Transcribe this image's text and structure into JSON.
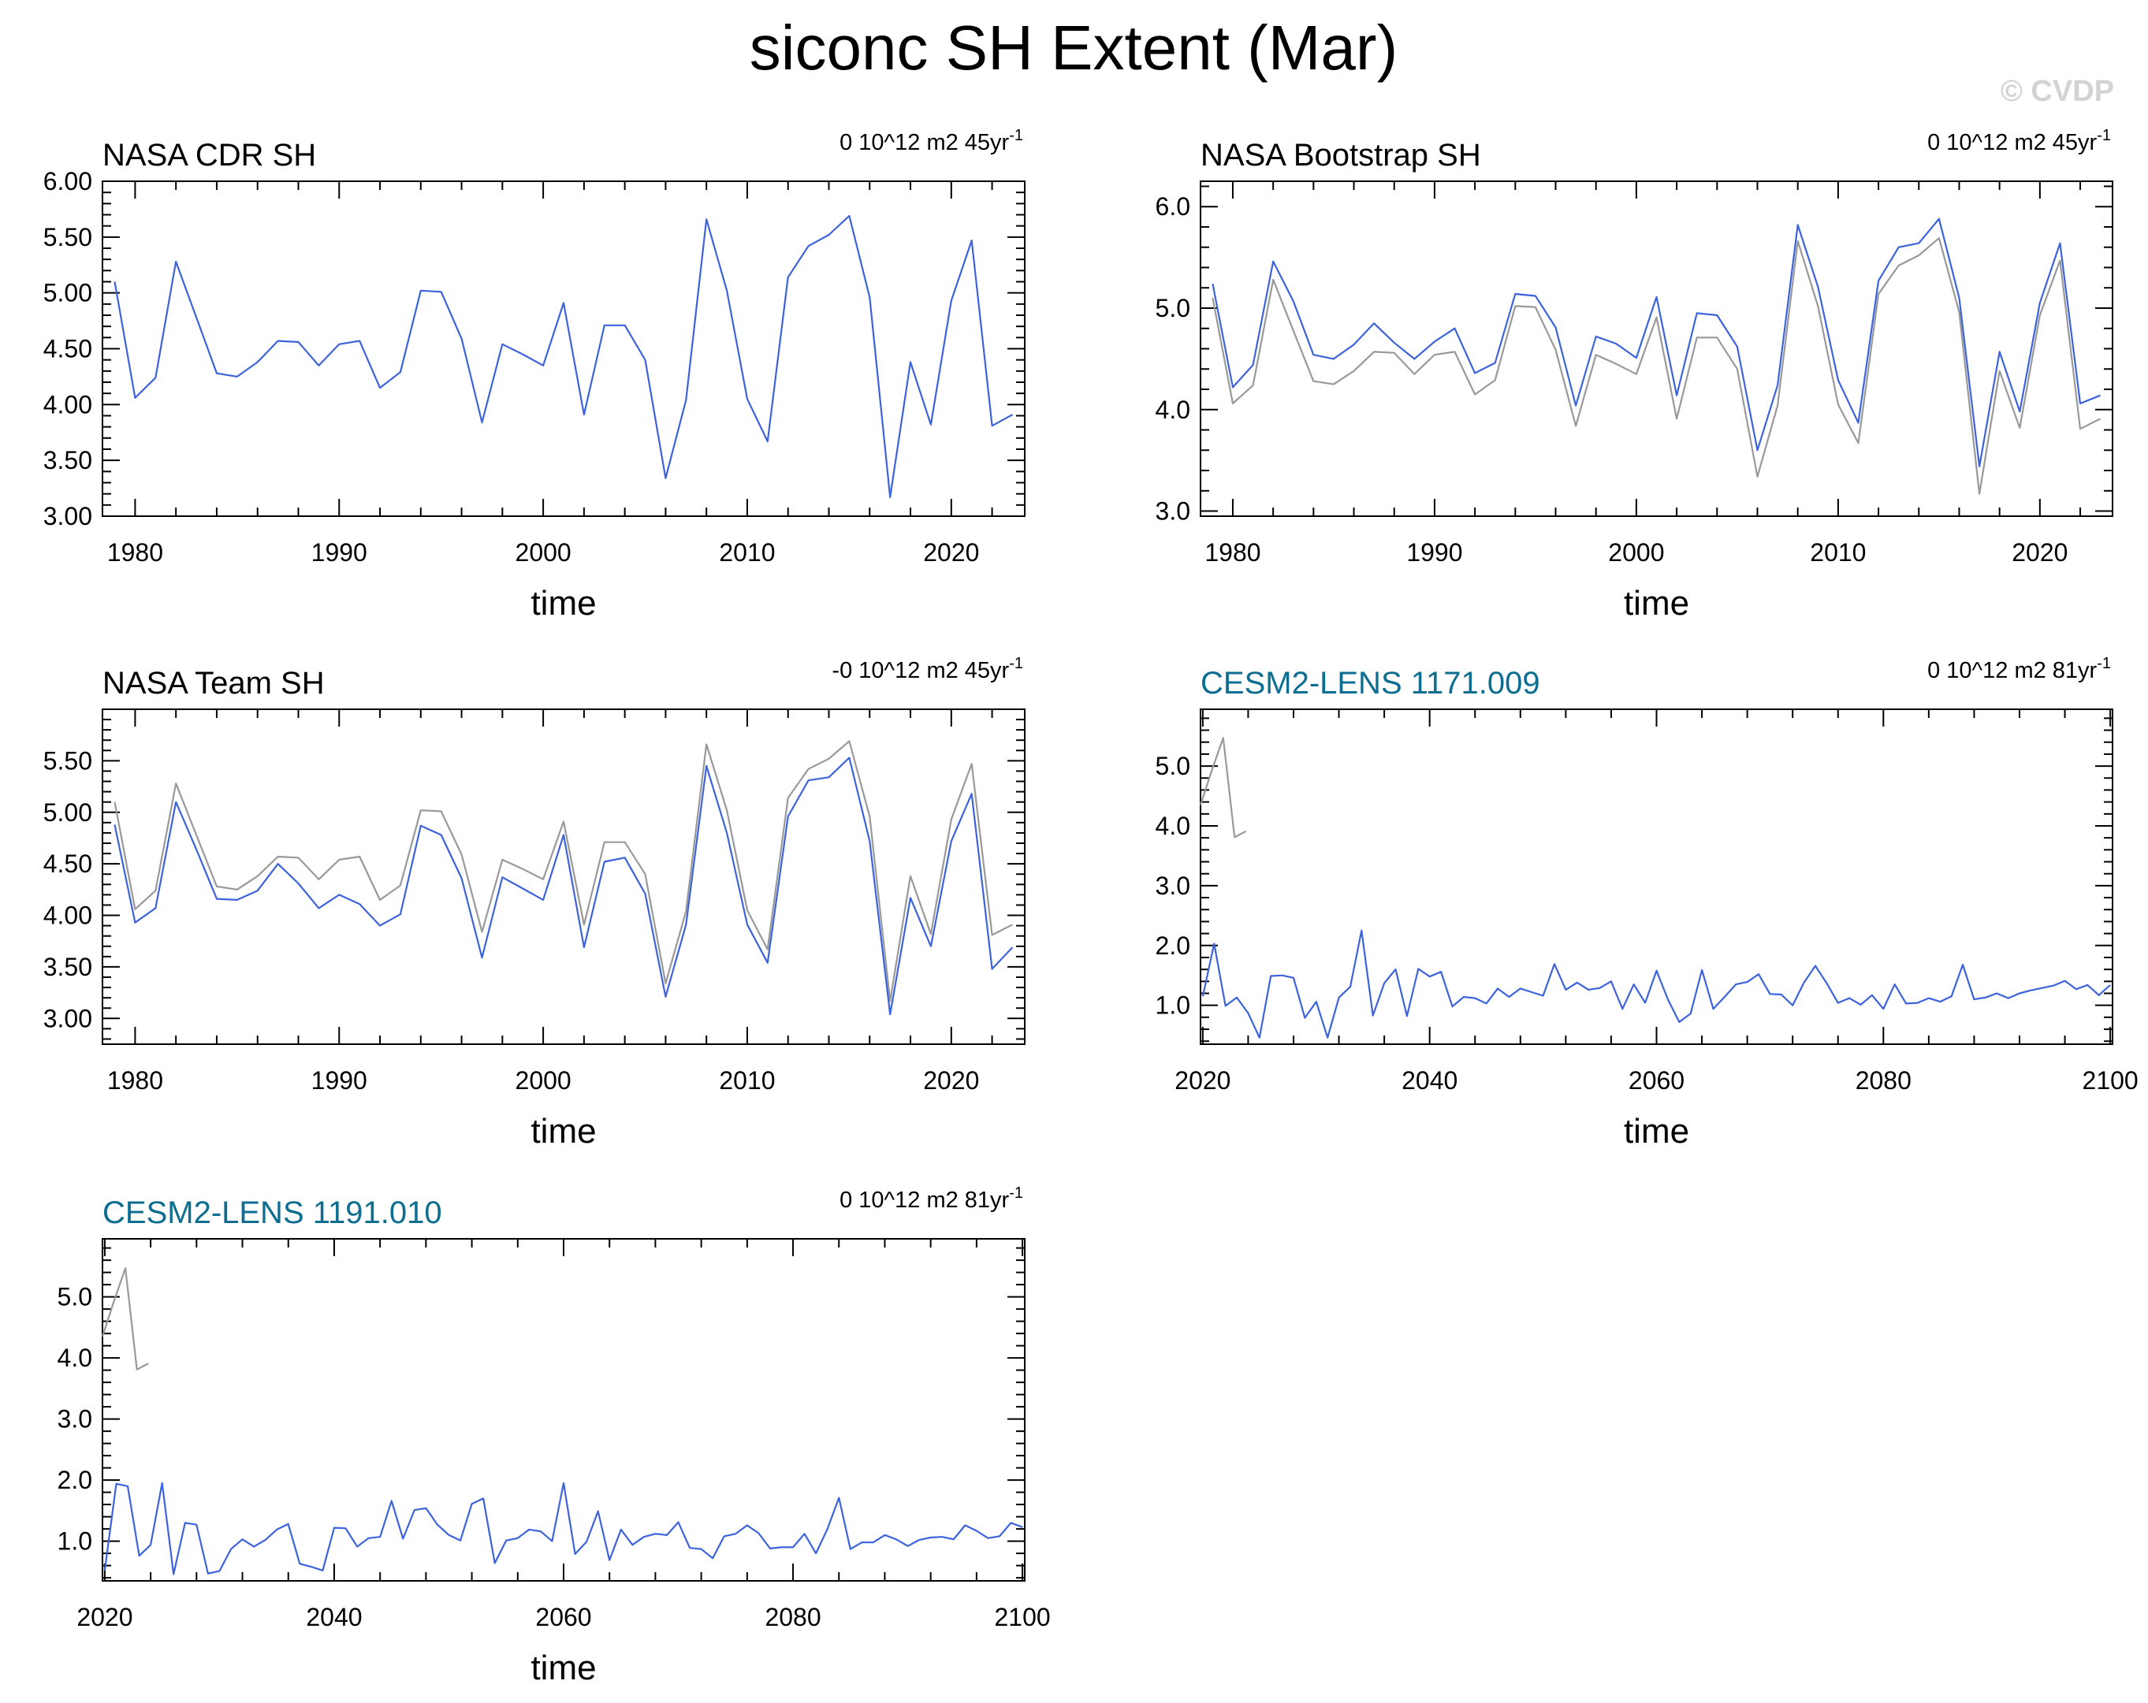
{
  "page": {
    "title": "siconc SH Extent (Mar)",
    "watermark": "© CVDP"
  },
  "colors": {
    "series_blue": "#3d63dc",
    "series_gray": "#999999",
    "model_title": "#0d6e91",
    "text": "#000000",
    "watermark": "#d3d3d3"
  },
  "chart_data": [
    {
      "type": "line",
      "title": "NASA CDR SH",
      "trend_label": "0 10^12 m2 45yr",
      "trend_exponent": "-1",
      "xlabel": "time",
      "ylabel": "",
      "xlim": [
        1978.4,
        2023.6
      ],
      "ylim": [
        3.0,
        6.0
      ],
      "xticks": [
        1980,
        1990,
        2000,
        2010,
        2020
      ],
      "yticks": [
        3.0,
        3.5,
        4.0,
        4.5,
        5.0,
        5.5,
        6.0
      ],
      "ytick_labels": [
        "3.00",
        "3.50",
        "4.00",
        "4.50",
        "5.00",
        "5.50",
        "6.00"
      ],
      "series": [
        {
          "color": "series_blue",
          "x_start": 1979,
          "values": [
            5.1,
            4.06,
            4.24,
            5.28,
            4.78,
            4.28,
            4.25,
            4.38,
            4.57,
            4.56,
            4.35,
            4.54,
            4.57,
            4.15,
            4.29,
            5.02,
            5.01,
            4.59,
            3.84,
            4.54,
            4.45,
            4.35,
            4.91,
            3.91,
            4.71,
            4.71,
            4.4,
            3.34,
            4.04,
            5.66,
            5.02,
            4.05,
            3.67,
            5.14,
            5.42,
            5.52,
            5.69,
            4.96,
            3.17,
            4.38,
            3.82,
            4.93,
            5.47,
            3.81,
            3.91
          ]
        }
      ]
    },
    {
      "type": "line",
      "title": "NASA Bootstrap SH",
      "trend_label": "0 10^12 m2 45yr",
      "trend_exponent": "-1",
      "xlabel": "time",
      "ylabel": "",
      "xlim": [
        1978.4,
        2023.6
      ],
      "ylim": [
        2.95,
        6.25
      ],
      "xticks": [
        1980,
        1990,
        2000,
        2010,
        2020
      ],
      "yticks": [
        3.0,
        4.0,
        5.0,
        6.0
      ],
      "ytick_labels": [
        "3.0",
        "4.0",
        "5.0",
        "6.0"
      ],
      "series": [
        {
          "color": "series_gray",
          "x_start": 1979,
          "values": [
            5.1,
            4.06,
            4.24,
            5.28,
            4.78,
            4.28,
            4.25,
            4.38,
            4.57,
            4.56,
            4.35,
            4.54,
            4.57,
            4.15,
            4.29,
            5.02,
            5.01,
            4.59,
            3.84,
            4.54,
            4.45,
            4.35,
            4.91,
            3.91,
            4.71,
            4.71,
            4.4,
            3.34,
            4.04,
            5.66,
            5.02,
            4.05,
            3.67,
            5.14,
            5.42,
            5.52,
            5.69,
            4.96,
            3.17,
            4.38,
            3.82,
            4.93,
            5.47,
            3.81,
            3.91
          ]
        },
        {
          "color": "series_blue",
          "x_start": 1979,
          "values": [
            5.24,
            4.22,
            4.44,
            5.46,
            5.07,
            4.54,
            4.5,
            4.64,
            4.85,
            4.66,
            4.5,
            4.67,
            4.8,
            4.36,
            4.46,
            5.14,
            5.12,
            4.81,
            4.04,
            4.72,
            4.65,
            4.51,
            5.11,
            4.14,
            4.95,
            4.93,
            4.62,
            3.6,
            4.24,
            5.82,
            5.21,
            4.29,
            3.87,
            5.27,
            5.6,
            5.64,
            5.88,
            5.1,
            3.44,
            4.57,
            3.98,
            5.05,
            5.64,
            4.06,
            4.14
          ]
        }
      ]
    },
    {
      "type": "line",
      "title": "NASA Team SH",
      "trend_label": "-0 10^12 m2 45yr",
      "trend_exponent": "-1",
      "xlabel": "time",
      "ylabel": "",
      "xlim": [
        1978.4,
        2023.6
      ],
      "ylim": [
        2.75,
        6.0
      ],
      "xticks": [
        1980,
        1990,
        2000,
        2010,
        2020
      ],
      "yticks": [
        3.0,
        3.5,
        4.0,
        4.5,
        5.0,
        5.5
      ],
      "ytick_labels": [
        "3.00",
        "3.50",
        "4.00",
        "4.50",
        "5.00",
        "5.50"
      ],
      "series": [
        {
          "color": "series_gray",
          "x_start": 1979,
          "values": [
            5.1,
            4.06,
            4.24,
            5.28,
            4.78,
            4.28,
            4.25,
            4.38,
            4.57,
            4.56,
            4.35,
            4.54,
            4.57,
            4.15,
            4.29,
            5.02,
            5.01,
            4.59,
            3.84,
            4.54,
            4.45,
            4.35,
            4.91,
            3.91,
            4.71,
            4.71,
            4.4,
            3.34,
            4.04,
            5.66,
            5.02,
            4.05,
            3.67,
            5.14,
            5.42,
            5.52,
            5.69,
            4.96,
            3.17,
            4.38,
            3.82,
            4.93,
            5.47,
            3.81,
            3.91
          ]
        },
        {
          "color": "series_blue",
          "x_start": 1979,
          "values": [
            4.88,
            3.93,
            4.07,
            5.1,
            4.64,
            4.16,
            4.15,
            4.24,
            4.5,
            4.31,
            4.07,
            4.2,
            4.11,
            3.9,
            4.01,
            4.87,
            4.78,
            4.36,
            3.59,
            4.37,
            4.26,
            4.15,
            4.78,
            3.69,
            4.52,
            4.56,
            4.21,
            3.21,
            3.91,
            5.45,
            4.8,
            3.91,
            3.54,
            4.96,
            5.31,
            5.34,
            5.53,
            4.72,
            3.04,
            4.17,
            3.7,
            4.72,
            5.18,
            3.48,
            3.69
          ]
        }
      ]
    },
    {
      "type": "line",
      "title": "CESM2-LENS 1171.009",
      "title_color": "model_title",
      "trend_label": "0 10^12 m2 81yr",
      "trend_exponent": "-1",
      "xlabel": "time",
      "ylabel": "",
      "xlim": [
        2019.8,
        2100.2
      ],
      "ylim": [
        0.35,
        5.95
      ],
      "xticks": [
        2020,
        2040,
        2060,
        2080,
        2100
      ],
      "yticks": [
        1.0,
        2.0,
        3.0,
        4.0,
        5.0
      ],
      "ytick_labels": [
        "1.0",
        "2.0",
        "3.0",
        "4.0",
        "5.0"
      ],
      "series": [
        {
          "color": "series_gray",
          "x_start": 2019.8,
          "values": [
            4.35,
            4.93,
            5.47,
            3.81,
            3.91
          ]
        },
        {
          "color": "series_blue",
          "x_start": 2020,
          "values": [
            1.15,
            2.03,
            0.99,
            1.13,
            0.87,
            0.46,
            1.49,
            1.5,
            1.46,
            0.79,
            1.06,
            0.46,
            1.13,
            1.31,
            2.25,
            0.83,
            1.37,
            1.6,
            0.82,
            1.61,
            1.48,
            1.56,
            0.98,
            1.14,
            1.12,
            1.03,
            1.28,
            1.14,
            1.28,
            1.22,
            1.16,
            1.69,
            1.26,
            1.38,
            1.26,
            1.29,
            1.4,
            0.94,
            1.35,
            1.04,
            1.58,
            1.1,
            0.72,
            0.86,
            1.59,
            0.94,
            1.14,
            1.35,
            1.39,
            1.52,
            1.19,
            1.18,
            1.0,
            1.38,
            1.66,
            1.37,
            1.04,
            1.12,
            1.01,
            1.17,
            0.94,
            1.35,
            1.03,
            1.04,
            1.12,
            1.06,
            1.15,
            1.68,
            1.1,
            1.13,
            1.2,
            1.12,
            1.2,
            1.25,
            1.29,
            1.33,
            1.41,
            1.27,
            1.34,
            1.17,
            1.34
          ]
        }
      ]
    },
    {
      "type": "line",
      "title": "CESM2-LENS 1191.010",
      "title_color": "model_title",
      "trend_label": "0 10^12 m2 81yr",
      "trend_exponent": "-1",
      "xlabel": "time",
      "ylabel": "",
      "xlim": [
        2019.8,
        2100.2
      ],
      "ylim": [
        0.35,
        5.95
      ],
      "xticks": [
        2020,
        2040,
        2060,
        2080,
        2100
      ],
      "yticks": [
        1.0,
        2.0,
        3.0,
        4.0,
        5.0
      ],
      "ytick_labels": [
        "1.0",
        "2.0",
        "3.0",
        "4.0",
        "5.0"
      ],
      "series": [
        {
          "color": "series_gray",
          "x_start": 2019.8,
          "values": [
            4.35,
            4.93,
            5.47,
            3.81,
            3.91
          ]
        },
        {
          "color": "series_blue",
          "x_start": 2020,
          "values": [
            0.52,
            1.94,
            1.9,
            0.76,
            0.94,
            1.95,
            0.46,
            1.3,
            1.27,
            0.47,
            0.51,
            0.87,
            1.03,
            0.91,
            1.02,
            1.19,
            1.28,
            0.63,
            0.58,
            0.52,
            1.22,
            1.21,
            0.91,
            1.05,
            1.07,
            1.66,
            1.04,
            1.51,
            1.54,
            1.27,
            1.1,
            1.01,
            1.61,
            1.7,
            0.64,
            1.01,
            1.05,
            1.19,
            1.16,
            1.0,
            1.95,
            0.79,
            0.99,
            1.49,
            0.69,
            1.19,
            0.94,
            1.07,
            1.12,
            1.1,
            1.31,
            0.89,
            0.87,
            0.72,
            1.08,
            1.12,
            1.26,
            1.13,
            0.88,
            0.9,
            0.9,
            1.12,
            0.8,
            1.2,
            1.71,
            0.87,
            0.98,
            0.98,
            1.1,
            1.03,
            0.92,
            1.02,
            1.06,
            1.07,
            1.03,
            1.26,
            1.17,
            1.05,
            1.08,
            1.3,
            1.23
          ]
        }
      ]
    }
  ]
}
